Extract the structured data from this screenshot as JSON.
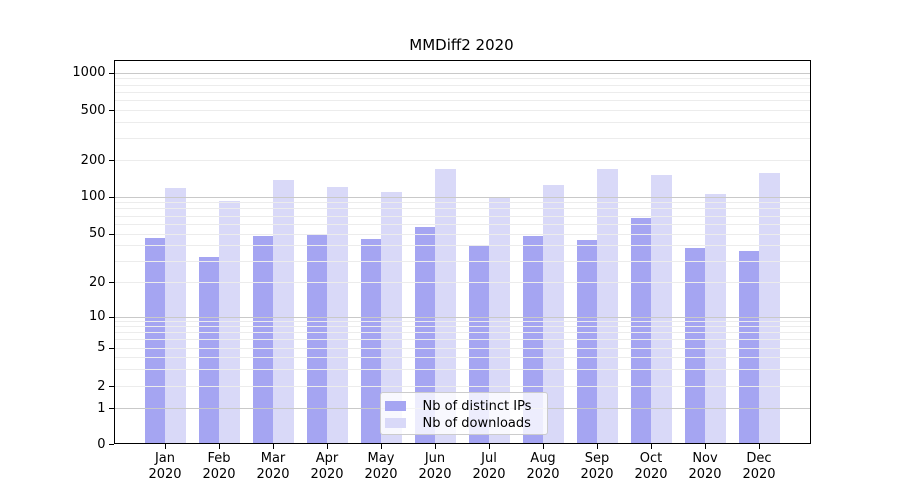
{
  "chart_data": {
    "type": "bar",
    "title": "MMDiff2 2020",
    "xlabel": "",
    "ylabel": "",
    "scale": "symlog",
    "grid": true,
    "legend_position": "inside-bottom-center",
    "year_label": "2020",
    "months": [
      "Jan",
      "Feb",
      "Mar",
      "Apr",
      "May",
      "Jun",
      "Jul",
      "Aug",
      "Sep",
      "Oct",
      "Nov",
      "Dec"
    ],
    "y_ticks": [
      0,
      1,
      2,
      5,
      10,
      20,
      50,
      100,
      200,
      500,
      1000
    ],
    "ylim": [
      0,
      1100
    ],
    "series": [
      {
        "name": "Nb of distinct IPs",
        "color": "#a5a5f2",
        "values": [
          46,
          32,
          48,
          49,
          45,
          56,
          40,
          48,
          44,
          67,
          38,
          36
        ]
      },
      {
        "name": "Nb of downloads",
        "color": "#d9d9f8",
        "values": [
          117,
          92,
          137,
          120,
          108,
          170,
          97,
          125,
          168,
          150,
          105,
          155
        ]
      }
    ]
  },
  "colors": {
    "background": "#ffffff",
    "spine": "#000000",
    "grid_minor": "#ececec",
    "grid_major": "#c9c9c9",
    "legend_border": "#cccccc",
    "text": "#000000"
  }
}
